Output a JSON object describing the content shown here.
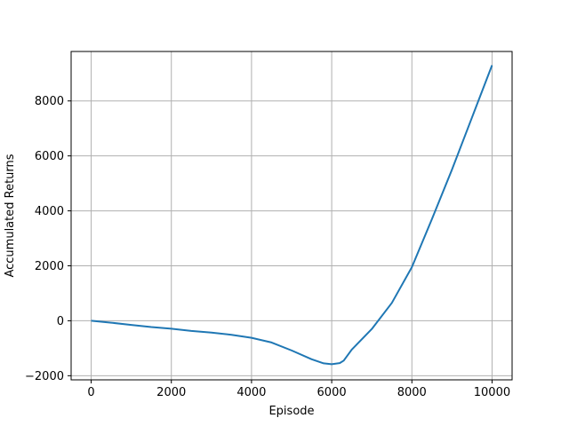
{
  "chart_data": {
    "type": "line",
    "title": "",
    "xlabel": "Episode",
    "ylabel": "Accumulated Returns",
    "xlim": [
      -500,
      10500
    ],
    "ylim": [
      -2150,
      9800
    ],
    "x_ticks": [
      0,
      2000,
      4000,
      6000,
      8000,
      10000
    ],
    "y_ticks": [
      -2000,
      0,
      2000,
      4000,
      6000,
      8000
    ],
    "x_tick_labels": [
      "0",
      "2000",
      "4000",
      "6000",
      "8000",
      "10000"
    ],
    "y_tick_labels": [
      "−2000",
      "0",
      "2000",
      "4000",
      "6000",
      "8000"
    ],
    "grid": true,
    "series": [
      {
        "color": "#1f77b4",
        "x": [
          0,
          500,
          1000,
          1500,
          2000,
          2500,
          3000,
          3500,
          4000,
          4500,
          5000,
          5500,
          5800,
          6000,
          6200,
          6300,
          6500,
          7000,
          7500,
          8000,
          8500,
          9000,
          9500,
          10000
        ],
        "y": [
          0,
          -70,
          -150,
          -230,
          -290,
          -370,
          -430,
          -510,
          -620,
          -790,
          -1080,
          -1400,
          -1550,
          -1580,
          -1540,
          -1450,
          -1050,
          -300,
          650,
          1950,
          3700,
          5500,
          7400,
          9300
        ]
      }
    ]
  }
}
